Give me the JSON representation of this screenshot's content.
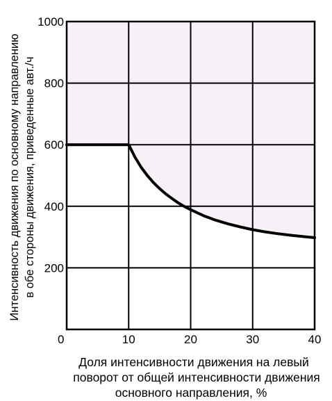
{
  "chart_data": {
    "type": "line",
    "title": "",
    "ylabel_lines": [
      "Интенсивность движения по основному направлению",
      "в обе стороны движения, приведенные авт./ч"
    ],
    "xlabel_lines": [
      "Доля интенсивности движения на левый",
      "поворот от общей интенсивности движения",
      "основного направления, %"
    ],
    "xlim": [
      0,
      40
    ],
    "ylim": [
      0,
      1000
    ],
    "x_ticks": [
      0,
      10,
      20,
      30,
      40
    ],
    "y_ticks": [
      0,
      200,
      400,
      600,
      800,
      1000
    ],
    "x_tick_labels": [
      "0",
      "10",
      "20",
      "30",
      "40"
    ],
    "y_tick_labels": [
      "200",
      "400",
      "600",
      "800",
      "1000"
    ],
    "grid": true,
    "colors": {
      "above_curve_fill": "#f7f1f7",
      "line": "#000000",
      "grid": "#000000"
    },
    "series": [
      {
        "x": [
          0,
          10,
          11,
          12,
          13,
          14,
          15,
          16,
          17,
          18,
          19,
          20,
          22,
          24,
          26,
          28,
          30,
          32,
          34,
          36,
          38,
          40
        ],
        "y": [
          600,
          600,
          560,
          527,
          500,
          477,
          457,
          440,
          425,
          411,
          399,
          389,
          370,
          355,
          343,
          333,
          324,
          317,
          311,
          306,
          302,
          298
        ]
      }
    ]
  }
}
